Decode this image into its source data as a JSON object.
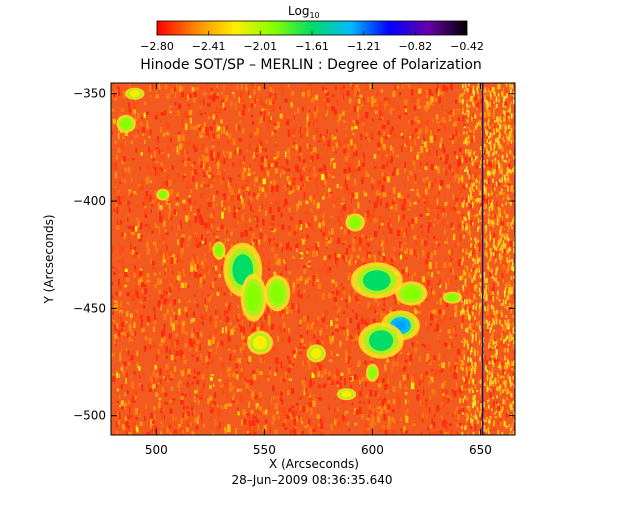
{
  "chart_data": {
    "type": "heatmap",
    "colorbar": {
      "label": "Log",
      "label_subscript": "10",
      "ticks": [
        "−2.80",
        "−2.41",
        "−2.01",
        "−1.61",
        "−1.21",
        "−0.82",
        "−0.42"
      ],
      "range": [
        -2.8,
        -0.42
      ],
      "colormap": [
        "#ff0000",
        "#ff8800",
        "#ffee00",
        "#88ff00",
        "#00dd66",
        "#00bbff",
        "#0000ff",
        "#6600aa",
        "#000000"
      ]
    },
    "title": "Hinode SOT/SP – MERLIN : Degree of Polarization",
    "xlabel": "X (Arcseconds)",
    "ylabel": "Y (Arcseconds)",
    "xlim": [
      479,
      666
    ],
    "ylim": [
      -509,
      -345
    ],
    "xticks": [
      500,
      550,
      600,
      650
    ],
    "xtick_labels": [
      "500",
      "550",
      "600",
      "650"
    ],
    "yticks": [
      -350,
      -400,
      -450,
      -500
    ],
    "ytick_labels": [
      "−350",
      "−400",
      "−450",
      "−500"
    ],
    "background_level": -2.8,
    "strong_regions": [
      {
        "x": 540,
        "y": -432,
        "rx": 6,
        "ry": 9,
        "level": -1.7
      },
      {
        "x": 545,
        "y": -445,
        "rx": 4,
        "ry": 8,
        "level": -1.8
      },
      {
        "x": 556,
        "y": -443,
        "rx": 4,
        "ry": 6,
        "level": -1.9
      },
      {
        "x": 613,
        "y": -458,
        "rx": 6,
        "ry": 5,
        "level": -1.4
      },
      {
        "x": 604,
        "y": -465,
        "rx": 7,
        "ry": 6,
        "level": -1.6
      },
      {
        "x": 602,
        "y": -437,
        "rx": 8,
        "ry": 6,
        "level": -1.7
      },
      {
        "x": 618,
        "y": -443,
        "rx": 5,
        "ry": 4,
        "level": -1.9
      },
      {
        "x": 600,
        "y": -480,
        "rx": 2,
        "ry": 3,
        "level": -1.9
      },
      {
        "x": 592,
        "y": -410,
        "rx": 3,
        "ry": 3,
        "level": -2.0
      },
      {
        "x": 503,
        "y": -397,
        "rx": 2,
        "ry": 2,
        "level": -1.9
      },
      {
        "x": 486,
        "y": -364,
        "rx": 3,
        "ry": 3,
        "level": -2.0
      },
      {
        "x": 529,
        "y": -423,
        "rx": 2,
        "ry": 3,
        "level": -2.0
      },
      {
        "x": 490,
        "y": -350,
        "rx": 3,
        "ry": 2,
        "level": -2.1
      },
      {
        "x": 574,
        "y": -471,
        "rx": 3,
        "ry": 3,
        "level": -2.1
      },
      {
        "x": 637,
        "y": -445,
        "rx": 3,
        "ry": 2,
        "level": -2.0
      },
      {
        "x": 548,
        "y": -466,
        "rx": 4,
        "ry": 4,
        "level": -2.1
      },
      {
        "x": 588,
        "y": -490,
        "rx": 3,
        "ry": 2,
        "level": -2.1
      }
    ],
    "vertical_line_x": 651,
    "date": "28–Jun–2009 08:36:35.640"
  }
}
